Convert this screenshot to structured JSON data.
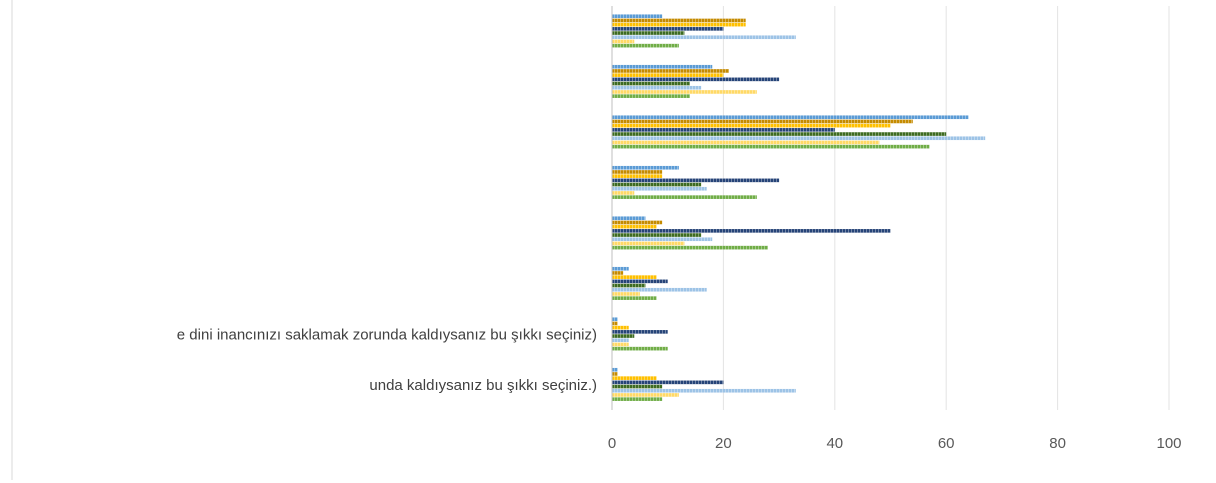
{
  "chart_data": {
    "type": "bar",
    "orientation": "horizontal",
    "grid": true,
    "xlim": [
      0,
      100
    ],
    "x_ticks": [
      0,
      20,
      40,
      60,
      80,
      100
    ],
    "categories": [
      "",
      "",
      "",
      "",
      "",
      "",
      "e dini inancınızı saklamak zorunda kaldıysanız bu şıkkı seçiniz)",
      "unda kaldıysanız bu şıkkı seçiniz.)"
    ],
    "series_colors": [
      "#5b9bd5",
      "#c58b00",
      "#ffc000",
      "#264478",
      "#3d6b21",
      "#9dc3e6",
      "#ffd966",
      "#70ad47"
    ],
    "series": [
      {
        "values": [
          9,
          18,
          64,
          12,
          6,
          3,
          1,
          1
        ]
      },
      {
        "values": [
          24,
          21,
          54,
          9,
          9,
          2,
          1,
          1
        ]
      },
      {
        "values": [
          24,
          20,
          50,
          9,
          8,
          8,
          3,
          8
        ]
      },
      {
        "values": [
          20,
          30,
          40,
          30,
          50,
          10,
          10,
          20
        ]
      },
      {
        "values": [
          13,
          14,
          60,
          16,
          16,
          6,
          4,
          9
        ]
      },
      {
        "values": [
          33,
          16,
          67,
          17,
          18,
          17,
          3,
          33
        ]
      },
      {
        "values": [
          4,
          26,
          48,
          4,
          13,
          5,
          3,
          12
        ]
      },
      {
        "values": [
          12,
          14,
          57,
          26,
          28,
          8,
          10,
          9
        ]
      }
    ]
  }
}
